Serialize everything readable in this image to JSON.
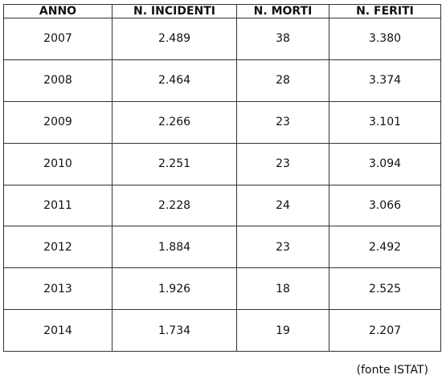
{
  "table": {
    "headers": [
      "ANNO",
      "N. INCIDENTI",
      "N. MORTI",
      "N. FERITI"
    ],
    "rows": [
      [
        "2007",
        "2.489",
        "38",
        "3.380"
      ],
      [
        "2008",
        "2.464",
        "28",
        "3.374"
      ],
      [
        "2009",
        "2.266",
        "23",
        "3.101"
      ],
      [
        "2010",
        "2.251",
        "23",
        "3.094"
      ],
      [
        "2011",
        "2.228",
        "24",
        "3.066"
      ],
      [
        "2012",
        "1.884",
        "23",
        "2.492"
      ],
      [
        "2013",
        "1.926",
        "18",
        "2.525"
      ],
      [
        "2014",
        "1.734",
        "19",
        "2.207"
      ]
    ]
  },
  "source_note": "(fonte ISTAT)"
}
